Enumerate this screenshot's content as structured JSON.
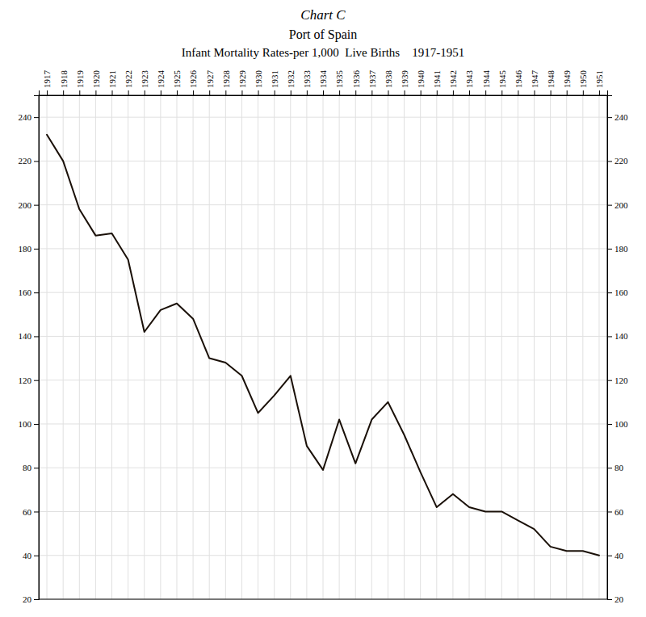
{
  "chart_data": {
    "type": "line",
    "title": [
      "Chart C",
      "Port of Spain",
      "Infant Mortality Rates-per 1,000  Live Births    1917-1951"
    ],
    "x": [
      1917,
      1918,
      1919,
      1920,
      1921,
      1922,
      1923,
      1924,
      1925,
      1926,
      1927,
      1928,
      1929,
      1930,
      1931,
      1932,
      1933,
      1934,
      1935,
      1936,
      1937,
      1938,
      1939,
      1940,
      1941,
      1942,
      1943,
      1944,
      1945,
      1946,
      1947,
      1948,
      1949,
      1950,
      1951
    ],
    "values": [
      232,
      220,
      198,
      186,
      187,
      175,
      142,
      152,
      155,
      148,
      130,
      128,
      122,
      105,
      113,
      122,
      90,
      79,
      102,
      82,
      102,
      110,
      95,
      78,
      62,
      68,
      62,
      60,
      60,
      56,
      52,
      44,
      42,
      42,
      40
    ],
    "color": "#1a1008",
    "xlim": [
      1916.5,
      1951.5
    ],
    "xticks": [
      1917,
      1918,
      1919,
      1920,
      1921,
      1922,
      1923,
      1924,
      1925,
      1926,
      1927,
      1928,
      1929,
      1930,
      1931,
      1932,
      1933,
      1934,
      1935,
      1936,
      1937,
      1938,
      1939,
      1940,
      1941,
      1942,
      1943,
      1944,
      1945,
      1946,
      1947,
      1948,
      1949,
      1950,
      1951
    ],
    "ylim": [
      20,
      250
    ],
    "yticks": [
      20,
      40,
      60,
      80,
      100,
      120,
      140,
      160,
      180,
      200,
      220,
      240
    ],
    "grid": true
  }
}
